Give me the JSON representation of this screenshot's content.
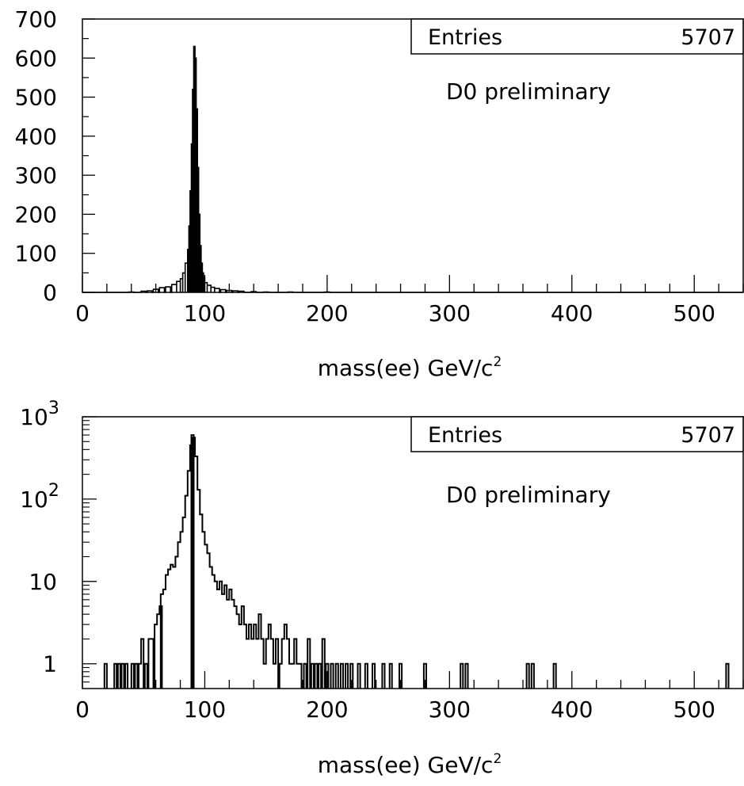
{
  "chart_data": [
    {
      "type": "histogram",
      "panel": "top",
      "xlabel_main": "mass(ee) GeV/c",
      "xlabel_sup": "2",
      "ylabel": "",
      "xlim": [
        0,
        540
      ],
      "ylim": [
        0,
        700
      ],
      "log_y": false,
      "x_ticks": [
        0,
        100,
        200,
        300,
        400,
        500
      ],
      "y_ticks": [
        0,
        100,
        200,
        300,
        400,
        500,
        600,
        700
      ],
      "stats_box": {
        "label": "Entries",
        "value": "5707",
        "placement": "top-right"
      },
      "annotation": "D0 preliminary",
      "bin_width": 1,
      "bins": [
        {
          "x": 40,
          "y": 1
        },
        {
          "x": 50,
          "y": 3
        },
        {
          "x": 55,
          "y": 4
        },
        {
          "x": 60,
          "y": 8
        },
        {
          "x": 65,
          "y": 12
        },
        {
          "x": 70,
          "y": 14
        },
        {
          "x": 75,
          "y": 20
        },
        {
          "x": 78,
          "y": 28
        },
        {
          "x": 80,
          "y": 35
        },
        {
          "x": 82,
          "y": 50
        },
        {
          "x": 84,
          "y": 75
        },
        {
          "x": 85,
          "y": 110
        },
        {
          "x": 86,
          "y": 170
        },
        {
          "x": 87,
          "y": 260
        },
        {
          "x": 88,
          "y": 380
        },
        {
          "x": 89,
          "y": 520
        },
        {
          "x": 90,
          "y": 630
        },
        {
          "x": 91,
          "y": 600
        },
        {
          "x": 92,
          "y": 470
        },
        {
          "x": 93,
          "y": 320
        },
        {
          "x": 94,
          "y": 200
        },
        {
          "x": 95,
          "y": 120
        },
        {
          "x": 96,
          "y": 75
        },
        {
          "x": 97,
          "y": 50
        },
        {
          "x": 98,
          "y": 38
        },
        {
          "x": 100,
          "y": 25
        },
        {
          "x": 103,
          "y": 18
        },
        {
          "x": 106,
          "y": 13
        },
        {
          "x": 110,
          "y": 10
        },
        {
          "x": 115,
          "y": 7
        },
        {
          "x": 120,
          "y": 5
        },
        {
          "x": 125,
          "y": 4
        },
        {
          "x": 130,
          "y": 3
        },
        {
          "x": 140,
          "y": 2
        },
        {
          "x": 150,
          "y": 1
        },
        {
          "x": 170,
          "y": 1
        },
        {
          "x": 200,
          "y": 1
        }
      ]
    },
    {
      "type": "histogram",
      "panel": "bottom",
      "xlabel_main": "mass(ee) GeV/c",
      "xlabel_sup": "2",
      "ylabel": "",
      "xlim": [
        0,
        540
      ],
      "ylim": [
        0.5,
        1000
      ],
      "log_y": true,
      "x_ticks": [
        0,
        100,
        200,
        300,
        400,
        500
      ],
      "y_ticks": [
        {
          "value": 1,
          "base": "1",
          "exp": ""
        },
        {
          "value": 10,
          "base": "10",
          "exp": ""
        },
        {
          "value": 100,
          "base": "10",
          "exp": "2"
        },
        {
          "value": 1000,
          "base": "10",
          "exp": "3"
        }
      ],
      "stats_box": {
        "label": "Entries",
        "value": "5707",
        "placement": "top-right"
      },
      "annotation": "D0 preliminary",
      "bin_width": 1,
      "bins": [
        {
          "x": 19,
          "y": 1
        },
        {
          "x": 27,
          "y": 1
        },
        {
          "x": 30,
          "y": 1
        },
        {
          "x": 33,
          "y": 1
        },
        {
          "x": 36,
          "y": 1
        },
        {
          "x": 41,
          "y": 1
        },
        {
          "x": 44,
          "y": 1
        },
        {
          "x": 47,
          "y": 1
        },
        {
          "x": 49,
          "y": 2
        },
        {
          "x": 52,
          "y": 1
        },
        {
          "x": 55,
          "y": 2
        },
        {
          "x": 57,
          "y": 2
        },
        {
          "x": 60,
          "y": 3
        },
        {
          "x": 62,
          "y": 4
        },
        {
          "x": 64,
          "y": 5
        },
        {
          "x": 65,
          "y": 7
        },
        {
          "x": 67,
          "y": 8
        },
        {
          "x": 69,
          "y": 12
        },
        {
          "x": 71,
          "y": 14
        },
        {
          "x": 73,
          "y": 16
        },
        {
          "x": 75,
          "y": 15
        },
        {
          "x": 77,
          "y": 20
        },
        {
          "x": 79,
          "y": 30
        },
        {
          "x": 81,
          "y": 40
        },
        {
          "x": 83,
          "y": 60
        },
        {
          "x": 85,
          "y": 110
        },
        {
          "x": 87,
          "y": 220
        },
        {
          "x": 89,
          "y": 450
        },
        {
          "x": 90,
          "y": 600
        },
        {
          "x": 91,
          "y": 560
        },
        {
          "x": 93,
          "y": 330
        },
        {
          "x": 95,
          "y": 130
        },
        {
          "x": 97,
          "y": 65
        },
        {
          "x": 99,
          "y": 40
        },
        {
          "x": 101,
          "y": 28
        },
        {
          "x": 103,
          "y": 22
        },
        {
          "x": 105,
          "y": 15
        },
        {
          "x": 107,
          "y": 12
        },
        {
          "x": 109,
          "y": 10
        },
        {
          "x": 111,
          "y": 8
        },
        {
          "x": 113,
          "y": 10
        },
        {
          "x": 115,
          "y": 7
        },
        {
          "x": 117,
          "y": 9
        },
        {
          "x": 119,
          "y": 6
        },
        {
          "x": 121,
          "y": 8
        },
        {
          "x": 123,
          "y": 6
        },
        {
          "x": 125,
          "y": 5
        },
        {
          "x": 127,
          "y": 4
        },
        {
          "x": 129,
          "y": 3
        },
        {
          "x": 131,
          "y": 5
        },
        {
          "x": 133,
          "y": 3
        },
        {
          "x": 135,
          "y": 2
        },
        {
          "x": 137,
          "y": 3
        },
        {
          "x": 139,
          "y": 2
        },
        {
          "x": 141,
          "y": 3
        },
        {
          "x": 143,
          "y": 2
        },
        {
          "x": 145,
          "y": 4
        },
        {
          "x": 147,
          "y": 2
        },
        {
          "x": 149,
          "y": 1
        },
        {
          "x": 151,
          "y": 2
        },
        {
          "x": 153,
          "y": 3
        },
        {
          "x": 155,
          "y": 2
        },
        {
          "x": 157,
          "y": 1
        },
        {
          "x": 159,
          "y": 2
        },
        {
          "x": 162,
          "y": 1
        },
        {
          "x": 164,
          "y": 2
        },
        {
          "x": 166,
          "y": 3
        },
        {
          "x": 168,
          "y": 2
        },
        {
          "x": 170,
          "y": 1
        },
        {
          "x": 172,
          "y": 1
        },
        {
          "x": 174,
          "y": 2
        },
        {
          "x": 176,
          "y": 1
        },
        {
          "x": 178,
          "y": 1
        },
        {
          "x": 182,
          "y": 1
        },
        {
          "x": 185,
          "y": 2
        },
        {
          "x": 188,
          "y": 1
        },
        {
          "x": 191,
          "y": 1
        },
        {
          "x": 194,
          "y": 1
        },
        {
          "x": 197,
          "y": 2
        },
        {
          "x": 200,
          "y": 1
        },
        {
          "x": 204,
          "y": 1
        },
        {
          "x": 208,
          "y": 1
        },
        {
          "x": 212,
          "y": 1
        },
        {
          "x": 216,
          "y": 1
        },
        {
          "x": 220,
          "y": 1
        },
        {
          "x": 226,
          "y": 1
        },
        {
          "x": 232,
          "y": 1
        },
        {
          "x": 238,
          "y": 1
        },
        {
          "x": 246,
          "y": 1
        },
        {
          "x": 252,
          "y": 1
        },
        {
          "x": 260,
          "y": 1
        },
        {
          "x": 280,
          "y": 1
        },
        {
          "x": 310,
          "y": 1
        },
        {
          "x": 314,
          "y": 1
        },
        {
          "x": 364,
          "y": 1
        },
        {
          "x": 368,
          "y": 1
        },
        {
          "x": 386,
          "y": 1
        },
        {
          "x": 527,
          "y": 1
        }
      ]
    }
  ]
}
